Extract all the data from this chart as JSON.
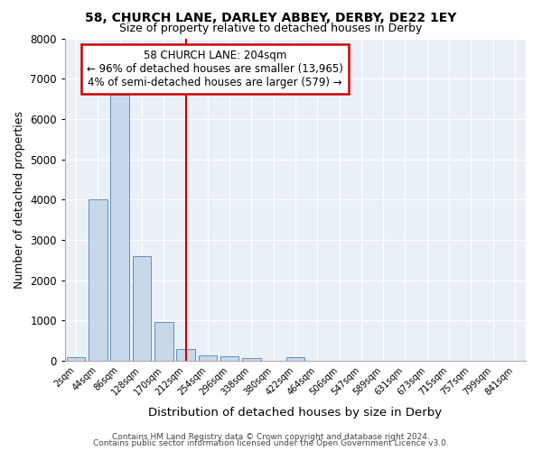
{
  "title1": "58, CHURCH LANE, DARLEY ABBEY, DERBY, DE22 1EY",
  "title2": "Size of property relative to detached houses in Derby",
  "xlabel": "Distribution of detached houses by size in Derby",
  "ylabel": "Number of detached properties",
  "bin_labels": [
    "2sqm",
    "44sqm",
    "86sqm",
    "128sqm",
    "170sqm",
    "212sqm",
    "254sqm",
    "296sqm",
    "338sqm",
    "380sqm",
    "422sqm",
    "464sqm",
    "506sqm",
    "547sqm",
    "589sqm",
    "631sqm",
    "673sqm",
    "715sqm",
    "757sqm",
    "799sqm",
    "841sqm"
  ],
  "bar_heights": [
    100,
    4000,
    6600,
    2600,
    970,
    300,
    130,
    110,
    75,
    0,
    100,
    0,
    0,
    0,
    0,
    0,
    0,
    0,
    0,
    0,
    0
  ],
  "bar_color": "#c8d8eb",
  "bar_edge_color": "#6090b8",
  "vline_x_index": 5,
  "vline_color": "#cc0000",
  "annotation_line1": "58 CHURCH LANE: 204sqm",
  "annotation_line2": "← 96% of detached houses are smaller (13,965)",
  "annotation_line3": "4% of semi-detached houses are larger (579) →",
  "annotation_box_color": "#cc0000",
  "background_color": "#eaf0f8",
  "ylim": [
    0,
    8000
  ],
  "yticks": [
    0,
    1000,
    2000,
    3000,
    4000,
    5000,
    6000,
    7000,
    8000
  ],
  "footer1": "Contains HM Land Registry data © Crown copyright and database right 2024.",
  "footer2": "Contains public sector information licensed under the Open Government Licence v3.0."
}
